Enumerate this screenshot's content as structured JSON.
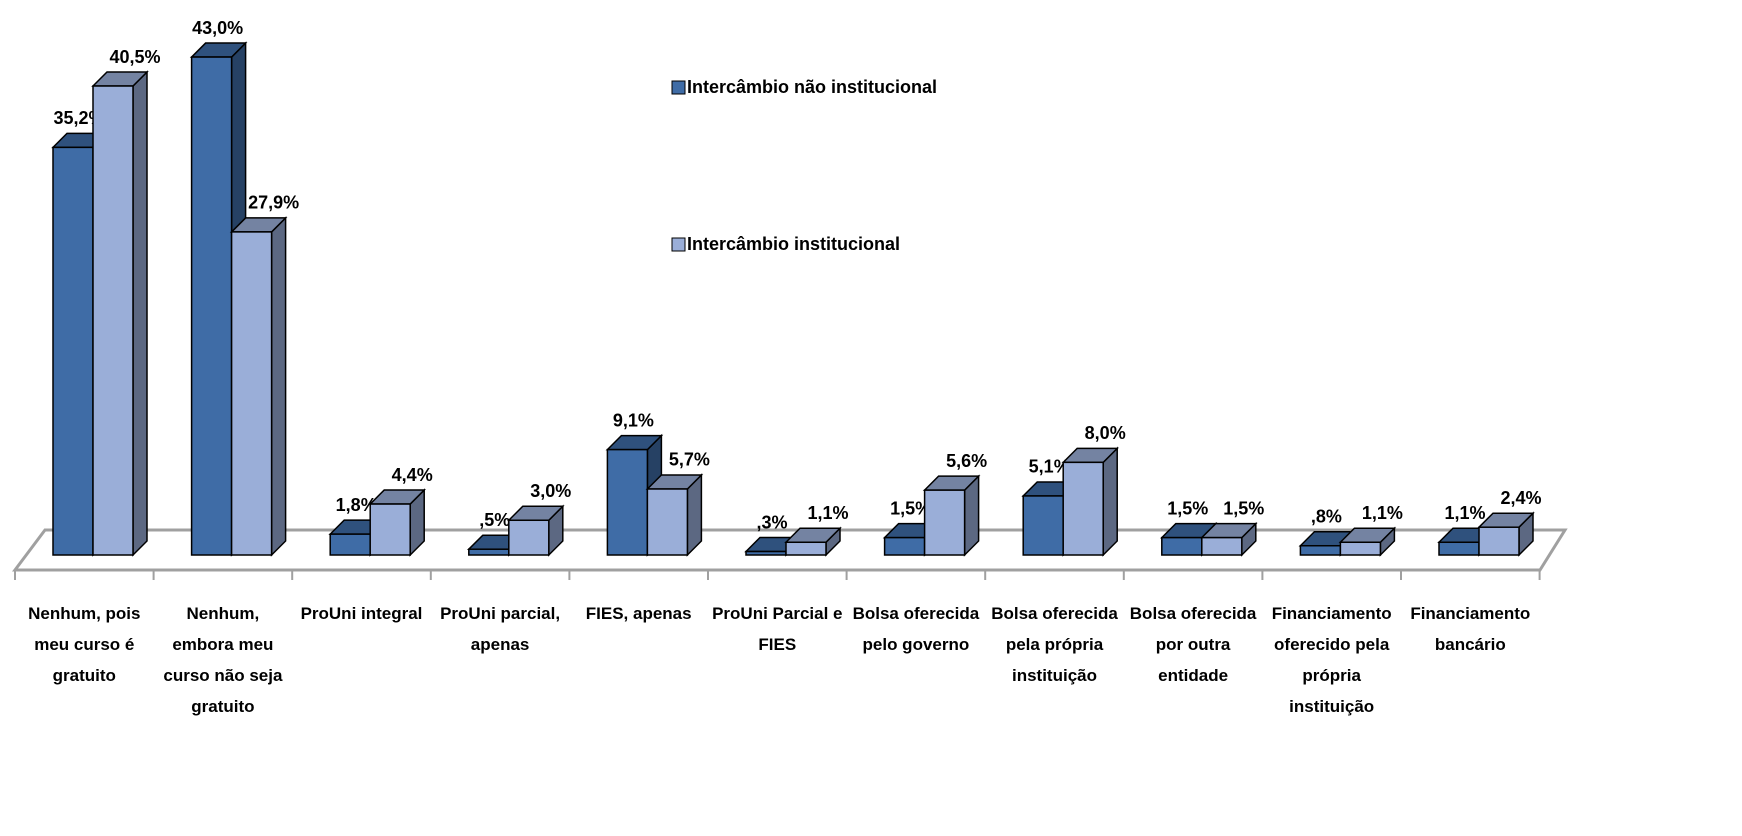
{
  "chart_data": {
    "type": "bar3d",
    "categories": [
      "Nenhum, pois meu curso é gratuito",
      "Nenhum, embora meu curso não seja gratuito",
      "ProUni integral",
      "ProUni parcial, apenas",
      "FIES, apenas",
      "ProUni Parcial e FIES",
      "Bolsa oferecida pelo governo",
      "Bolsa oferecida pela própria instituição",
      "Bolsa oferecida por outra entidade",
      "Financiamento oferecido pela própria instituição",
      "Financiamento bancário"
    ],
    "series": [
      {
        "name": "Intercâmbio não institucional",
        "color": "#3f6ca6",
        "values": [
          35.2,
          43.0,
          1.8,
          0.5,
          9.1,
          0.3,
          1.5,
          5.1,
          1.5,
          0.8,
          1.1
        ],
        "value_labels": [
          "35,2%",
          "43,0%",
          "1,8%",
          ",5%",
          "9,1%",
          ",3%",
          "1,5%",
          "5,1%",
          "1,5%",
          ",8%",
          "1,1%"
        ]
      },
      {
        "name": "Intercâmbio institucional",
        "color": "#9aaed8",
        "values": [
          40.5,
          27.9,
          4.4,
          3.0,
          5.7,
          1.1,
          5.6,
          8.0,
          1.5,
          1.1,
          2.4
        ],
        "value_labels": [
          "40,5%",
          "27,9%",
          "4,4%",
          "3,0%",
          "5,7%",
          "1,1%",
          "5,6%",
          "8,0%",
          "1,5%",
          "1,1%",
          "2,4%"
        ]
      }
    ]
  }
}
